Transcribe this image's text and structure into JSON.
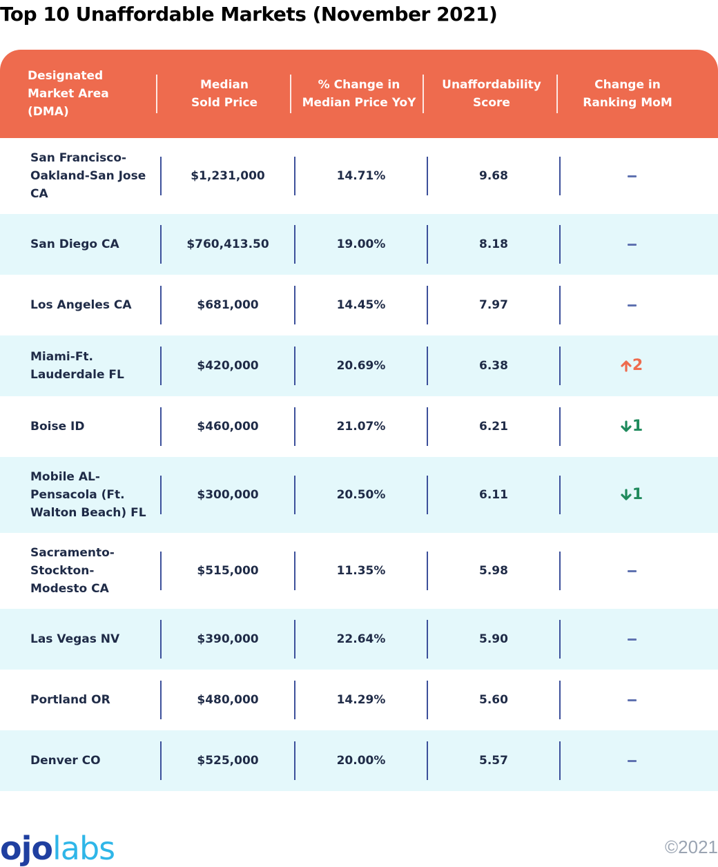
{
  "title": "Top 10 Unaffordable Markets (November 2021)",
  "header": {
    "columns": [
      "Designated\nMarket Area\n(DMA)",
      "Median\nSold Price",
      "% Change in\nMedian Price YoY",
      "Unaffordability\nScore",
      "Change in\nRanking MoM"
    ]
  },
  "colors": {
    "header_bg": "#ee6b4e",
    "alt_row_bg": "#e4f8fb",
    "up": "#ee6b4e",
    "down": "#1f8a5c",
    "no_change": "#5f72b0"
  },
  "rows": [
    {
      "market": [
        "San Francisco-",
        "Oakland-San Jose",
        "CA"
      ],
      "price": "$1,231,000",
      "change": "14.71%",
      "score": "9.68",
      "rank_change": {
        "dir": "none",
        "value": ""
      }
    },
    {
      "market": [
        "San Diego CA"
      ],
      "price": "$760,413.50",
      "change": "19.00%",
      "score": "8.18",
      "rank_change": {
        "dir": "none",
        "value": ""
      }
    },
    {
      "market": [
        "Los Angeles CA"
      ],
      "price": "$681,000",
      "change": "14.45%",
      "score": "7.97",
      "rank_change": {
        "dir": "none",
        "value": ""
      }
    },
    {
      "market": [
        "Miami-Ft.",
        "Lauderdale FL"
      ],
      "price": "$420,000",
      "change": "20.69%",
      "score": "6.38",
      "rank_change": {
        "dir": "up",
        "value": "2"
      }
    },
    {
      "market": [
        "Boise ID"
      ],
      "price": "$460,000",
      "change": "21.07%",
      "score": "6.21",
      "rank_change": {
        "dir": "down",
        "value": "1"
      }
    },
    {
      "market": [
        "Mobile AL-",
        "Pensacola (Ft.",
        "Walton Beach) FL"
      ],
      "price": "$300,000",
      "change": "20.50%",
      "score": "6.11",
      "rank_change": {
        "dir": "down",
        "value": "1"
      }
    },
    {
      "market": [
        "Sacramento-",
        "Stockton-",
        "Modesto CA"
      ],
      "price": "$515,000",
      "change": "11.35%",
      "score": "5.98",
      "rank_change": {
        "dir": "none",
        "value": ""
      }
    },
    {
      "market": [
        "Las Vegas NV"
      ],
      "price": "$390,000",
      "change": "22.64%",
      "score": "5.90",
      "rank_change": {
        "dir": "none",
        "value": ""
      }
    },
    {
      "market": [
        "Portland OR"
      ],
      "price": "$480,000",
      "change": "14.29%",
      "score": "5.60",
      "rank_change": {
        "dir": "none",
        "value": ""
      }
    },
    {
      "market": [
        "Denver CO"
      ],
      "price": "$525,000",
      "change": "20.00%",
      "score": "5.57",
      "rank_change": {
        "dir": "none",
        "value": ""
      }
    }
  ],
  "footer": {
    "logo": "ojolabs",
    "copyright": "©2021"
  }
}
